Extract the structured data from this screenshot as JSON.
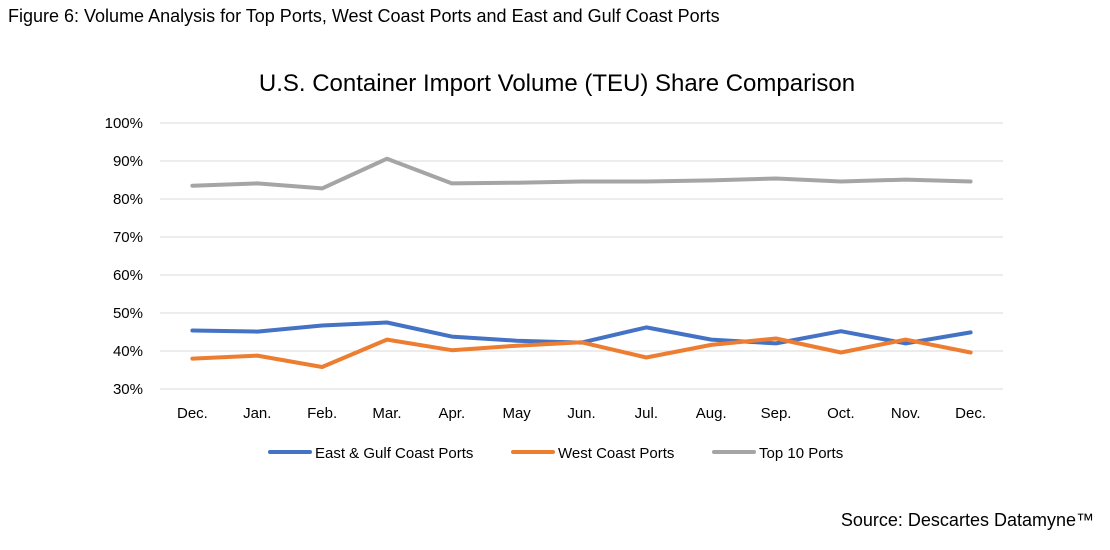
{
  "figure": {
    "caption": "Figure 6: Volume Analysis for Top Ports, West Coast Ports and East and Gulf Coast Ports",
    "source": "Source: Descartes Datamyne™"
  },
  "chart_data": {
    "type": "line",
    "title": "U.S. Container Import Volume (TEU) Share Comparison",
    "xlabel": "",
    "ylabel": "",
    "categories": [
      "Dec.",
      "Jan.",
      "Feb.",
      "Mar.",
      "Apr.",
      "May",
      "Jun.",
      "Jul.",
      "Aug.",
      "Sep.",
      "Oct.",
      "Nov.",
      "Dec."
    ],
    "ylim": [
      30,
      100
    ],
    "yticks": [
      30,
      40,
      50,
      60,
      70,
      80,
      90,
      100
    ],
    "ytick_labels": [
      "30%",
      "40%",
      "50%",
      "60%",
      "70%",
      "80%",
      "90%",
      "100%"
    ],
    "grid": true,
    "legend_position": "bottom",
    "series": [
      {
        "name": "East & Gulf Coast Ports",
        "color": "#4472C4",
        "values": [
          45.4,
          45.1,
          46.7,
          47.5,
          43.8,
          42.7,
          42.2,
          46.2,
          43.0,
          42.0,
          45.2,
          42.0,
          44.9
        ]
      },
      {
        "name": "West Coast Ports",
        "color": "#ED7D31",
        "values": [
          38.0,
          38.8,
          35.8,
          43.0,
          40.2,
          41.4,
          42.3,
          38.3,
          41.6,
          43.3,
          39.6,
          43.0,
          39.6
        ]
      },
      {
        "name": "Top 10 Ports",
        "color": "#A5A5A5",
        "values": [
          83.5,
          84.1,
          82.8,
          90.6,
          84.1,
          84.3,
          84.6,
          84.6,
          84.9,
          85.4,
          84.6,
          85.1,
          84.6
        ]
      }
    ]
  }
}
